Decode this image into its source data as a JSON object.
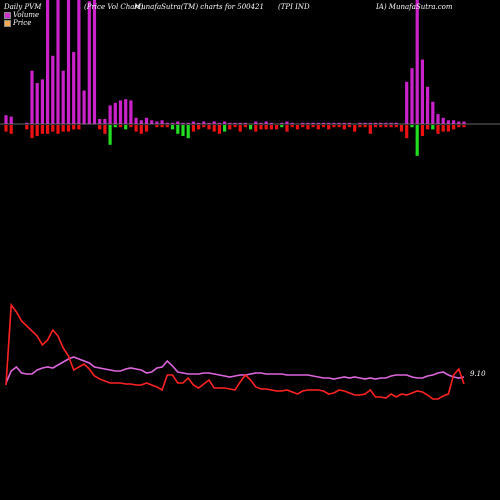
{
  "header": {
    "left": "Daily PVM",
    "mid1": "(Price Vol Chart)",
    "mid2": "MunafaSutra(TM) charts for 500421",
    "right": "(TPI IND",
    "right2": "IA) MunafaSutra.com"
  },
  "legend": [
    {
      "label": "Volume",
      "color": "#cc33cc"
    },
    {
      "label": "Price",
      "color": "#ff8040"
    }
  ],
  "colors": {
    "background": "#000000",
    "axis_line": "#888888",
    "volume_bar": "#cc22cc",
    "bar_up": "#22dd22",
    "bar_down": "#ee1111",
    "price_line": "#ff2222",
    "volume_line": "#dd66dd"
  },
  "chart_data": {
    "type": "bar",
    "price_label": "9.10",
    "series": [
      {
        "name": "Volume",
        "values": [
          7,
          6,
          0,
          0,
          1,
          43,
          33,
          36,
          100,
          55,
          100,
          43,
          100,
          58,
          100,
          27,
          99,
          100,
          4,
          4,
          15,
          17,
          19,
          20,
          19,
          5,
          3,
          5,
          3,
          2,
          3,
          1,
          1,
          2,
          1,
          1,
          2,
          1,
          2,
          1,
          2,
          1,
          2,
          1,
          1,
          1,
          1,
          0,
          2,
          1,
          2,
          1,
          0,
          1,
          2,
          1,
          0,
          1,
          1,
          1,
          1,
          1,
          1,
          1,
          1,
          1,
          1,
          0,
          1,
          1,
          1,
          1,
          1,
          1,
          1,
          1,
          0,
          34,
          45,
          100,
          52,
          30,
          18,
          8,
          5,
          3,
          3,
          2,
          2
        ]
      },
      {
        "name": "Change",
        "values": [
          -3,
          -4,
          0,
          0,
          -2,
          -6,
          -5,
          -4,
          -4,
          -3,
          -4,
          -3,
          -3,
          -2,
          -2,
          0,
          0,
          0,
          -2,
          -4,
          -9,
          -1,
          -1,
          -2,
          -1,
          -3,
          -4,
          -3,
          0,
          -1,
          -1,
          -1,
          -2,
          -4,
          -5,
          -6,
          -3,
          -2,
          -1,
          -2,
          -3,
          -4,
          -3,
          -2,
          -1,
          -3,
          -1,
          -2,
          -3,
          -2,
          -2,
          -2,
          -2,
          -1,
          -3,
          -1,
          -2,
          -1,
          -2,
          -1,
          -2,
          -1,
          -2,
          -1,
          -1,
          -2,
          -1,
          -3,
          -1,
          -1,
          -4,
          -1,
          -1,
          -1,
          -1,
          -1,
          -3,
          -6,
          -1,
          -14,
          -5,
          -2,
          -2,
          -4,
          -3,
          -3,
          -2,
          -1,
          -1
        ]
      },
      {
        "name": "ChangeColor",
        "values": [
          "down",
          "down",
          "down",
          "down",
          "down",
          "down",
          "down",
          "down",
          "down",
          "down",
          "down",
          "down",
          "down",
          "down",
          "down",
          "down",
          "down",
          "down",
          "down",
          "down",
          "up",
          "up",
          "down",
          "up",
          "down",
          "down",
          "down",
          "down",
          "down",
          "down",
          "down",
          "down",
          "up",
          "up",
          "up",
          "up",
          "down",
          "down",
          "down",
          "down",
          "down",
          "down",
          "up",
          "down",
          "down",
          "down",
          "down",
          "up",
          "down",
          "down",
          "down",
          "down",
          "down",
          "up",
          "down",
          "down",
          "down",
          "down",
          "down",
          "down",
          "down",
          "down",
          "down",
          "down",
          "down",
          "down",
          "down",
          "down",
          "down",
          "down",
          "down",
          "down",
          "down",
          "down",
          "down",
          "down",
          "down",
          "down",
          "up",
          "up",
          "down",
          "down",
          "up",
          "down",
          "down",
          "down",
          "down",
          "down",
          "down"
        ]
      },
      {
        "name": "Price",
        "values": [
          20,
          100,
          93,
          84,
          79,
          74,
          69,
          60,
          65,
          75,
          69,
          57,
          49,
          35,
          38,
          41,
          36,
          29,
          26,
          24,
          22,
          22,
          22,
          21,
          21,
          20,
          20,
          22,
          20,
          18,
          15,
          30,
          30,
          22,
          22,
          27,
          20,
          17,
          21,
          25,
          17,
          17,
          17,
          16,
          15,
          23,
          30,
          25,
          18,
          16,
          16,
          15,
          14,
          14,
          15,
          13,
          11,
          14,
          15,
          15,
          15,
          14,
          11,
          12,
          15,
          14,
          12,
          10,
          10,
          11,
          15,
          8,
          8,
          7,
          11,
          8,
          11,
          10,
          12,
          14,
          13,
          10,
          6,
          6,
          9,
          11,
          30,
          36,
          21
        ]
      },
      {
        "name": "VolumeLine",
        "values": [
          22,
          34,
          38,
          32,
          31,
          31,
          35,
          37,
          38,
          37,
          40,
          43,
          46,
          48,
          46,
          44,
          42,
          38,
          37,
          36,
          35,
          34,
          34,
          36,
          37,
          36,
          35,
          32,
          33,
          37,
          38,
          44,
          39,
          33,
          32,
          31,
          31,
          31,
          32,
          32,
          31,
          30,
          29,
          28,
          29,
          30,
          30,
          31,
          32,
          32,
          31,
          31,
          31,
          31,
          30,
          30,
          30,
          30,
          30,
          29,
          28,
          27,
          27,
          26,
          27,
          28,
          27,
          28,
          27,
          26,
          27,
          26,
          27,
          27,
          29,
          30,
          30,
          30,
          28,
          27,
          27,
          29,
          30,
          32,
          33,
          30,
          28,
          27,
          28
        ]
      }
    ]
  }
}
